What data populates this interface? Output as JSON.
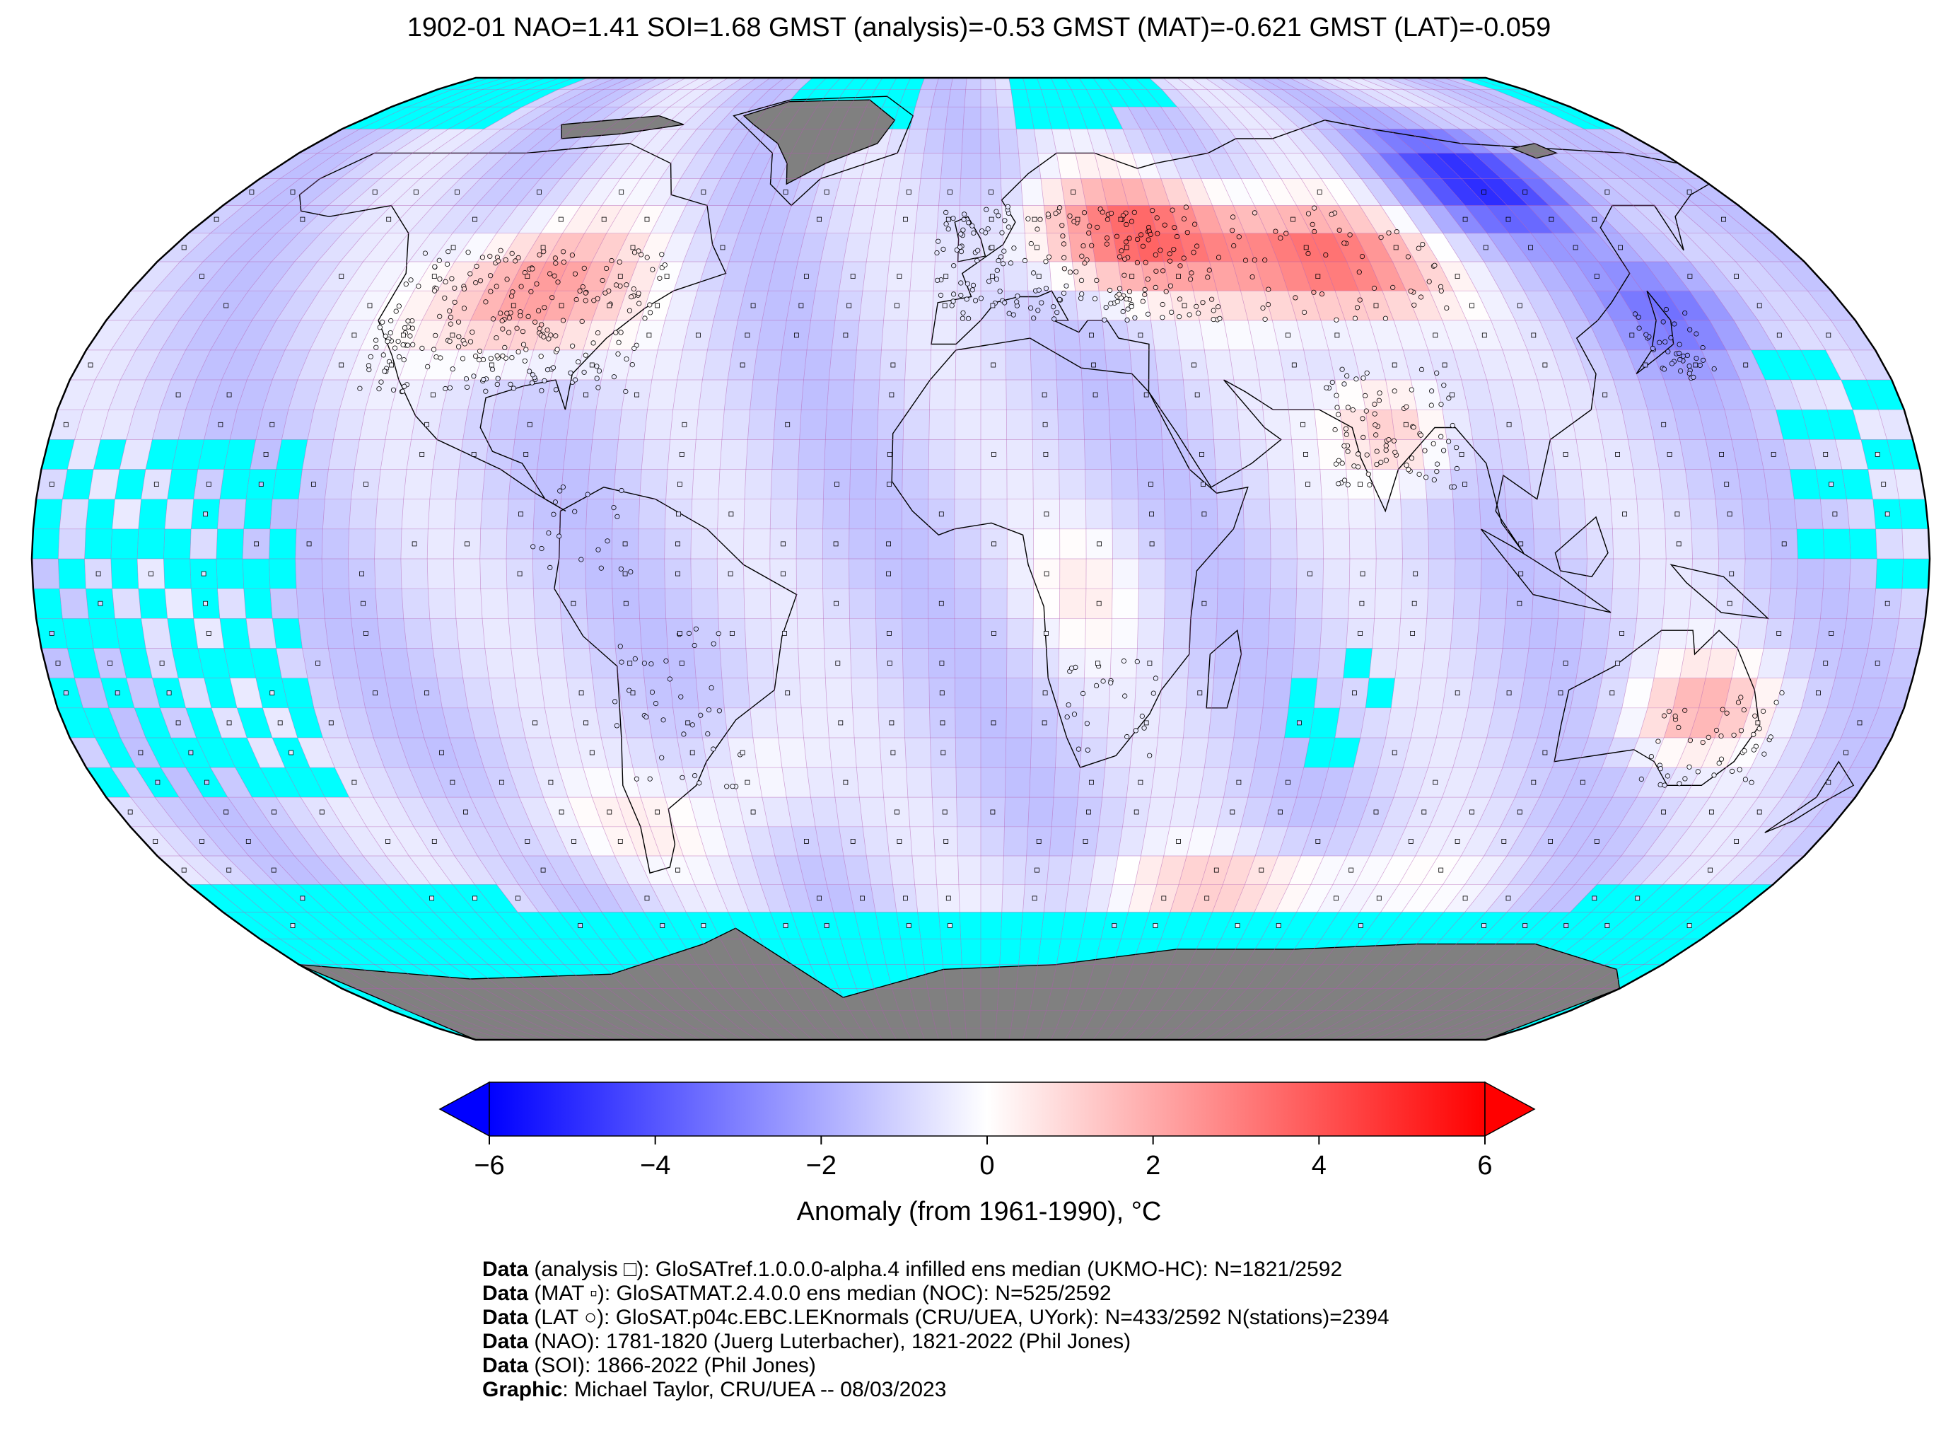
{
  "title": "1902-01 NAO=1.41 SOI=1.68 GMST (analysis)=-0.53 GMST (MAT)=-0.621 GMST (LAT)=-0.059",
  "colors": {
    "cold": "#0000ff",
    "warm": "#ff0000",
    "neutral": "#ffffff",
    "no_data": "#00ffff",
    "land_mask": "#808080",
    "grid": "#b05ab0"
  },
  "colorbar": {
    "label": "Anomaly (from 1961-1990), °C",
    "min": -6,
    "max": 6,
    "ticks": [
      "−6",
      "−4",
      "−2",
      "0",
      "2",
      "4",
      "6"
    ],
    "extend": "both"
  },
  "chart_data": {
    "type": "heatmap",
    "projection": "Robinson",
    "grid_resolution_deg": 5,
    "value_range": [
      -6,
      6
    ],
    "anomaly_regions": [
      {
        "region": "Western/Central North America",
        "anomaly": 2.5
      },
      {
        "region": "Europe & Western Russia",
        "anomaly": 3.0
      },
      {
        "region": "Central Asia / Western Siberia",
        "anomaly": 3.5
      },
      {
        "region": "India",
        "anomaly": 1.5
      },
      {
        "region": "East Siberia",
        "anomaly": -4.5
      },
      {
        "region": "Japan / NW Pacific",
        "anomaly": -3.0
      },
      {
        "region": "Australia",
        "anomaly": 1.5
      },
      {
        "region": "Southern Ocean (Indian sector)",
        "anomaly": 1.0
      },
      {
        "region": "Tropical oceans",
        "anomaly": -1.0
      }
    ],
    "markers": {
      "analysis": "square",
      "MAT": "small-square",
      "LAT": "circle"
    }
  },
  "credits": [
    {
      "bold": "Data",
      "text": " (analysis □): GloSATref.1.0.0.0-alpha.4 infilled ens median (UKMO-HC): N=1821/2592"
    },
    {
      "bold": "Data",
      "text": " (MAT ▫): GloSATMAT.2.4.0.0 ens median (NOC): N=525/2592"
    },
    {
      "bold": "Data",
      "text": " (LAT ○): GloSAT.p04c.EBC.LEKnormals (CRU/UEA, UYork): N=433/2592 N(stations)=2394"
    },
    {
      "bold": "Data",
      "text": " (NAO): 1781-1820 (Juerg Luterbacher), 1821-2022 (Phil Jones)"
    },
    {
      "bold": "Data",
      "text": " (SOI): 1866-2022 (Phil Jones)"
    },
    {
      "bold": "Graphic",
      "text": ": Michael Taylor, CRU/UEA -- 08/03/2023"
    }
  ]
}
